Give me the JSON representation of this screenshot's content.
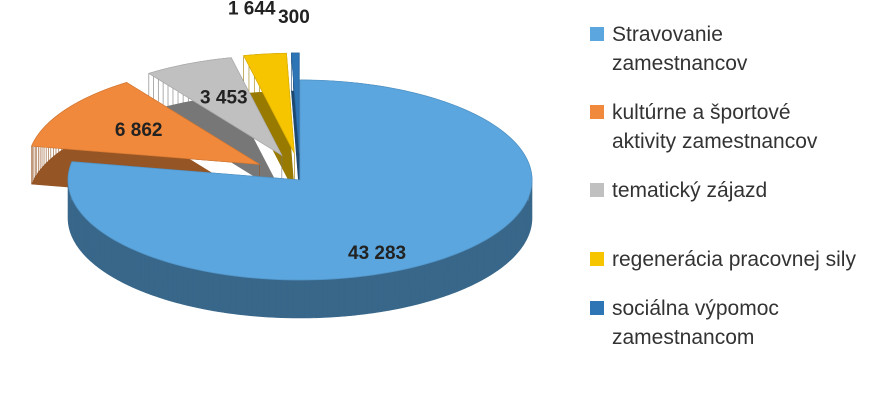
{
  "chart_data": {
    "type": "pie",
    "categories": [
      "Stravovanie zamestnancov",
      "kultúrne a športové aktivity zamestnancov",
      "tematický zájazd",
      "regenerácia pracovnej sily",
      "sociálna výpomoc zamestnancom"
    ],
    "values": [
      43283,
      6862,
      3453,
      1644,
      300
    ],
    "value_labels": [
      "43 283",
      "6 862",
      "3 453",
      "1 644",
      "300"
    ],
    "colors": [
      "#5ba6de",
      "#f0893b",
      "#c0c0c0",
      "#f6c500",
      "#2e75b6"
    ],
    "legend": "right"
  }
}
